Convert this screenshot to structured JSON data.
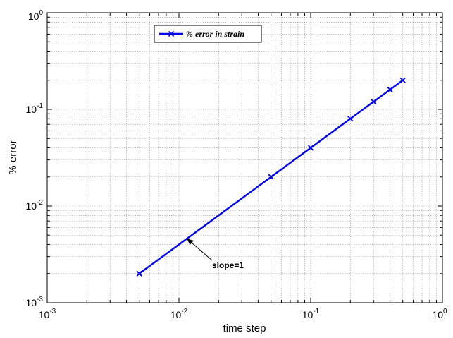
{
  "chart_data": {
    "type": "line",
    "xlabel": "time step",
    "ylabel": "% error",
    "xscale": "log",
    "yscale": "log",
    "xlim": [
      0.001,
      1
    ],
    "ylim": [
      0.001,
      1
    ],
    "grid": true,
    "legend_position": "top-left",
    "x_ticks": [
      {
        "value": 0.001,
        "base": "10",
        "exp": "-3"
      },
      {
        "value": 0.01,
        "base": "10",
        "exp": "-2"
      },
      {
        "value": 0.1,
        "base": "10",
        "exp": "-1"
      },
      {
        "value": 1,
        "base": "10",
        "exp": "0"
      }
    ],
    "y_ticks": [
      {
        "value": 0.001,
        "base": "10",
        "exp": "-3"
      },
      {
        "value": 0.01,
        "base": "10",
        "exp": "-2"
      },
      {
        "value": 0.1,
        "base": "10",
        "exp": "-1"
      },
      {
        "value": 1,
        "base": "10",
        "exp": "0"
      }
    ],
    "series": [
      {
        "name": "% error in strain",
        "color": "#0000ee",
        "marker": "x",
        "x": [
          0.005,
          0.05,
          0.1,
          0.2,
          0.3,
          0.4,
          0.5
        ],
        "y": [
          0.002,
          0.02,
          0.04,
          0.08,
          0.12,
          0.16,
          0.2
        ]
      }
    ],
    "annotations": [
      {
        "text": "slope=1",
        "points_to": {
          "x": 0.0115,
          "y": 0.0046
        },
        "arrow": true
      }
    ]
  }
}
